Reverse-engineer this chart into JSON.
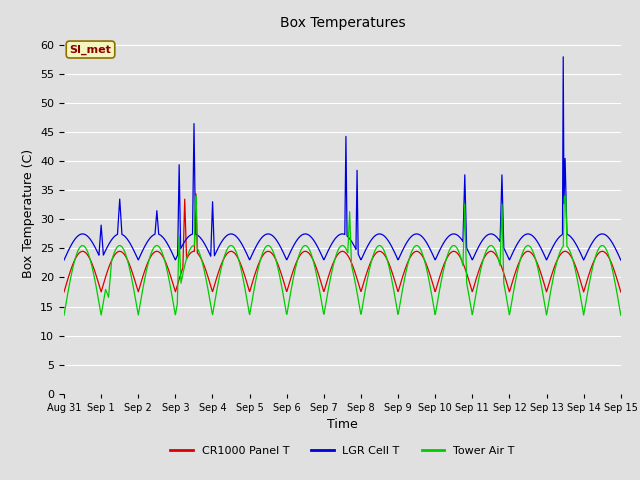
{
  "title": "Box Temperatures",
  "xlabel": "Time",
  "ylabel": "Box Temperature (C)",
  "ylim": [
    0,
    62
  ],
  "yticks": [
    0,
    5,
    10,
    15,
    20,
    25,
    30,
    35,
    40,
    45,
    50,
    55,
    60
  ],
  "bg_color": "#e0e0e0",
  "plot_bg_color": "#e0e0e0",
  "grid_color": "#ffffff",
  "line_colors": {
    "panel": "#dd0000",
    "lgr": "#0000dd",
    "tower": "#00cc00"
  },
  "legend_labels": [
    "CR1000 Panel T",
    "LGR Cell T",
    "Tower Air T"
  ],
  "watermark": "SI_met",
  "x_tick_labels": [
    "Aug 31",
    "Sep 1",
    "Sep 2",
    "Sep 3",
    "Sep 4",
    "Sep 5",
    "Sep 6",
    "Sep 7",
    "Sep 8",
    "Sep 9",
    "Sep 10",
    "Sep 11",
    "Sep 12",
    "Sep 13",
    "Sep 14",
    "Sep 15"
  ]
}
